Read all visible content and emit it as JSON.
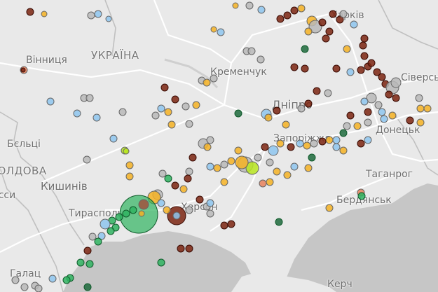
{
  "map": {
    "country_labels": [
      {
        "id": "ukraine",
        "text": "УКРАЇНА"
      },
      {
        "id": "moldova",
        "text": "МОЛДОВА"
      }
    ],
    "city_labels": [
      {
        "id": "vinnytsia",
        "text": "Вінниця"
      },
      {
        "id": "kremenchuk",
        "text": "Кременчук"
      },
      {
        "id": "dnipro",
        "text": "Дніпро"
      },
      {
        "id": "siversk",
        "text": "Сіверськ"
      },
      {
        "id": "donetsk",
        "text": "Донецьк"
      },
      {
        "id": "zaporizhzhia",
        "text": "Запоріжжя"
      },
      {
        "id": "taganrog",
        "text": "Таганрог"
      },
      {
        "id": "berdiansk",
        "text": "Бердянськ"
      },
      {
        "id": "balti",
        "text": "Бєльці"
      },
      {
        "id": "chisinau",
        "text": "Кишинів"
      },
      {
        "id": "iasi",
        "text": "Ясси"
      },
      {
        "id": "tiraspol",
        "text": "Тирасполь"
      },
      {
        "id": "kherson",
        "text": "Херсон"
      },
      {
        "id": "galati",
        "text": "Галац"
      },
      {
        "id": "kerch",
        "text": "Керч"
      },
      {
        "id": "kharkiv",
        "text": "Харків"
      }
    ],
    "colors": {
      "land": "#e9e9e9",
      "water": "#c6c6c6",
      "roads": "#ffffff",
      "borders": "#bdbdbd"
    },
    "marker_categories": [
      {
        "id": "dark-red",
        "color": "#7b2410"
      },
      {
        "id": "orange",
        "color": "#f4b223"
      },
      {
        "id": "gray",
        "color": "#b9b9b9"
      },
      {
        "id": "blue",
        "color": "#8ec5ee"
      },
      {
        "id": "green",
        "color": "#2fb360"
      },
      {
        "id": "dark-green",
        "color": "#1d6a3c"
      },
      {
        "id": "lime",
        "color": "#b8e620"
      },
      {
        "id": "salmon",
        "color": "#e8815c"
      },
      {
        "id": "brown",
        "color": "#a0523e"
      }
    ]
  }
}
